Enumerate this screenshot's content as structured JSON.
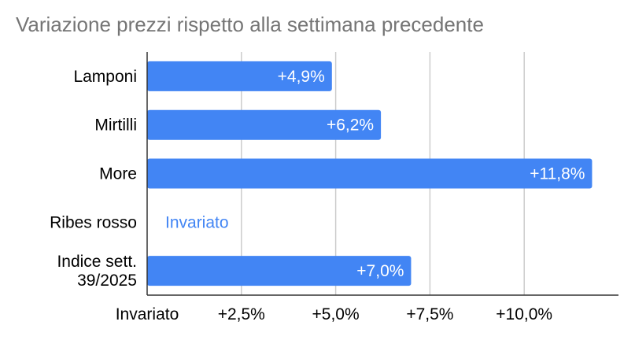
{
  "chart_data": {
    "type": "bar",
    "orientation": "horizontal",
    "title": "Variazione prezzi rispetto alla settimana precedente",
    "categories": [
      [
        "Lamponi"
      ],
      [
        "Mirtilli"
      ],
      [
        "More"
      ],
      [
        "Ribes rosso"
      ],
      [
        "Indice sett.",
        "39/2025"
      ]
    ],
    "values": [
      4.9,
      6.2,
      11.8,
      0,
      7.0
    ],
    "data_labels": [
      "+4,9%",
      "+6,2%",
      "+11,8%",
      "Invariato",
      "+7,0%"
    ],
    "x_ticks": [
      0,
      2.5,
      5.0,
      7.5,
      10.0
    ],
    "x_tick_labels": [
      "Invariato",
      "+2,5%",
      "+5,0%",
      "+7,5%",
      "+10,0%"
    ],
    "xlim": [
      0,
      12.5
    ],
    "grid": true,
    "legend": "none",
    "colors": {
      "bar": "#4285f4",
      "grid": "#cccccc",
      "axis": "#333333",
      "title": "#757575",
      "outside_label": "#4285f4"
    }
  }
}
